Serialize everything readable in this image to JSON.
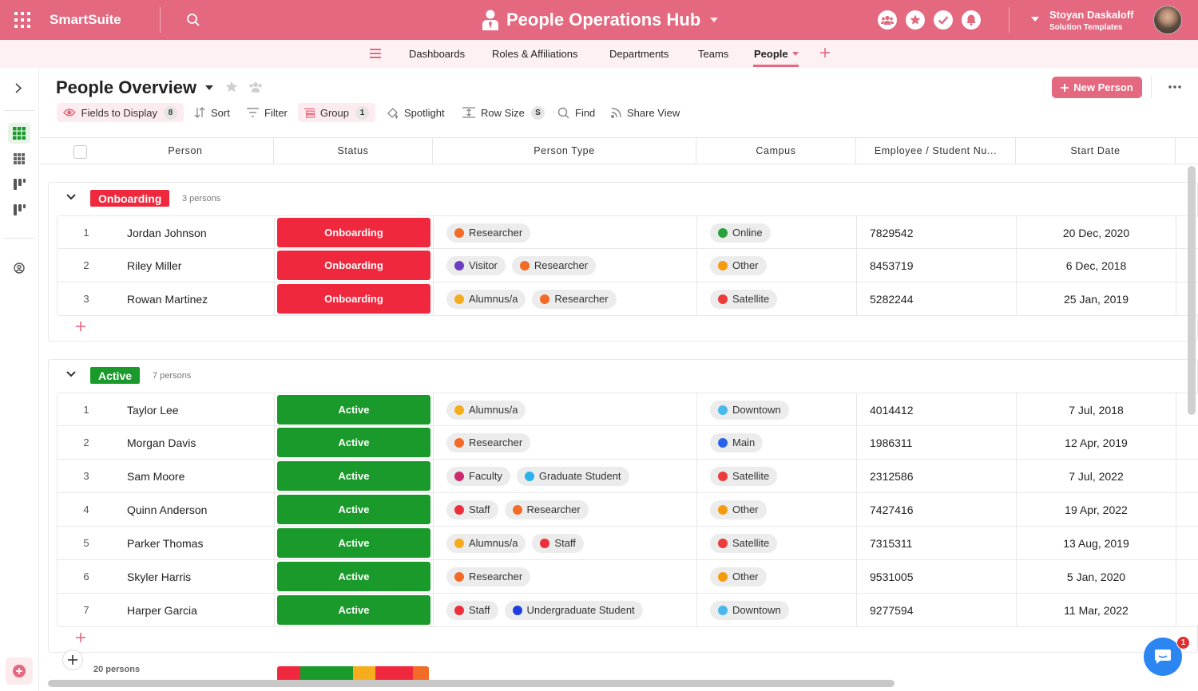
{
  "app": {
    "brand": "SmartSuite",
    "title": "People Operations Hub",
    "user_name": "Stoyan Daskaloff",
    "user_subtitle": "Solution Templates"
  },
  "nav": {
    "tabs": [
      "Dashboards",
      "Roles & Affiliations",
      "Departments",
      "Teams",
      "People"
    ],
    "active_tab": "People"
  },
  "view": {
    "title": "People Overview",
    "new_button": "New Person",
    "toolbar": {
      "fields_label": "Fields to Display",
      "fields_count": "8",
      "sort_label": "Sort",
      "filter_label": "Filter",
      "group_label": "Group",
      "group_count": "1",
      "spotlight_label": "Spotlight",
      "rowsize_label": "Row Size",
      "rowsize_value": "S",
      "find_label": "Find",
      "share_label": "Share View"
    }
  },
  "table": {
    "columns": [
      "Person",
      "Status",
      "Person Type",
      "Campus",
      "Employee / Student Nu...",
      "Start Date"
    ]
  },
  "colors": {
    "accent": "#e4687f",
    "onboarding": "#f0283e",
    "active": "#1a9a2a",
    "Researcher": "#f26b27",
    "Visitor": "#6f3dc1",
    "Alumnus/a": "#f5ad1d",
    "Faculty": "#cc2a6e",
    "Graduate Student": "#2ab2ee",
    "Staff": "#ec2f3b",
    "Undergraduate Student": "#1f3ee0",
    "Online": "#27a13a",
    "Other": "#f59b10",
    "Satellite": "#ec3b3b",
    "Downtown": "#46b8ee",
    "Main": "#2764e8"
  },
  "groups": [
    {
      "name": "Onboarding",
      "count_text": "3 persons",
      "rows": [
        {
          "num": "1",
          "person": "Jordan Johnson",
          "status": "Onboarding",
          "types": [
            "Researcher"
          ],
          "campus": "Online",
          "emp": "7829542",
          "date": "20 Dec, 2020"
        },
        {
          "num": "2",
          "person": "Riley Miller",
          "status": "Onboarding",
          "types": [
            "Visitor",
            "Researcher"
          ],
          "campus": "Other",
          "emp": "8453719",
          "date": "6 Dec, 2018"
        },
        {
          "num": "3",
          "person": "Rowan Martinez",
          "status": "Onboarding",
          "types": [
            "Alumnus/a",
            "Researcher"
          ],
          "campus": "Satellite",
          "emp": "5282244",
          "date": "25 Jan, 2019"
        }
      ]
    },
    {
      "name": "Active",
      "count_text": "7 persons",
      "rows": [
        {
          "num": "1",
          "person": "Taylor Lee",
          "status": "Active",
          "types": [
            "Alumnus/a"
          ],
          "campus": "Downtown",
          "emp": "4014412",
          "date": "7 Jul, 2018"
        },
        {
          "num": "2",
          "person": "Morgan Davis",
          "status": "Active",
          "types": [
            "Researcher"
          ],
          "campus": "Main",
          "emp": "1986311",
          "date": "12 Apr, 2019"
        },
        {
          "num": "3",
          "person": "Sam Moore",
          "status": "Active",
          "types": [
            "Faculty",
            "Graduate Student"
          ],
          "campus": "Satellite",
          "emp": "2312586",
          "date": "7 Jul, 2022"
        },
        {
          "num": "4",
          "person": "Quinn Anderson",
          "status": "Active",
          "types": [
            "Staff",
            "Researcher"
          ],
          "campus": "Other",
          "emp": "7427416",
          "date": "19 Apr, 2022"
        },
        {
          "num": "5",
          "person": "Parker Thomas",
          "status": "Active",
          "types": [
            "Alumnus/a",
            "Staff"
          ],
          "campus": "Satellite",
          "emp": "7315311",
          "date": "13 Aug, 2019"
        },
        {
          "num": "6",
          "person": "Skyler Harris",
          "status": "Active",
          "types": [
            "Researcher"
          ],
          "campus": "Other",
          "emp": "9531005",
          "date": "5 Jan, 2020"
        },
        {
          "num": "7",
          "person": "Harper Garcia",
          "status": "Active",
          "types": [
            "Staff",
            "Undergraduate Student"
          ],
          "campus": "Downtown",
          "emp": "9277594",
          "date": "11 Mar, 2022"
        }
      ]
    }
  ],
  "footer": {
    "count_text": "20 persons",
    "status_bar_colors": [
      "#f0283e",
      "#1a9a2a",
      "#f5ad1d",
      "#f0283e",
      "#f26b27"
    ]
  },
  "chat": {
    "badge": "1"
  }
}
